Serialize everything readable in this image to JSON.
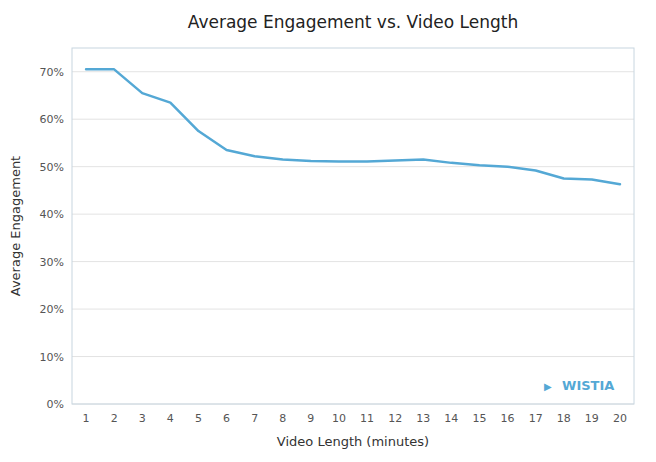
{
  "chart_data": {
    "type": "line",
    "title": "Average Engagement vs. Video Length",
    "x_label": "Video Length (minutes)",
    "y_label": "Average Engagement",
    "x": [
      1,
      2,
      3,
      4,
      5,
      6,
      7,
      8,
      9,
      10,
      11,
      12,
      13,
      14,
      15,
      16,
      17,
      18,
      19,
      20
    ],
    "values": [
      0.705,
      0.705,
      0.655,
      0.635,
      0.575,
      0.535,
      0.522,
      0.515,
      0.512,
      0.511,
      0.511,
      0.513,
      0.515,
      0.508,
      0.503,
      0.5,
      0.492,
      0.475,
      0.473,
      0.463
    ],
    "color": "#54a8d5",
    "xlim": [
      0.5,
      20.5
    ],
    "xticks": [
      1,
      2,
      3,
      4,
      5,
      6,
      7,
      8,
      9,
      10,
      11,
      12,
      13,
      14,
      15,
      16,
      17,
      18,
      19,
      20
    ],
    "ylim": [
      0.0,
      0.75
    ],
    "yticks": [
      {
        "value": 0.0,
        "label": "0%"
      },
      {
        "value": 0.1,
        "label": "10%"
      },
      {
        "value": 0.2,
        "label": "20%"
      },
      {
        "value": 0.3,
        "label": "30%"
      },
      {
        "value": 0.4,
        "label": "40%"
      },
      {
        "value": 0.5,
        "label": "50%"
      },
      {
        "value": 0.6,
        "label": "60%"
      },
      {
        "value": 0.7,
        "label": "70%"
      }
    ],
    "grid": "y",
    "annotations": [
      "▶",
      "WISTIA"
    ]
  }
}
